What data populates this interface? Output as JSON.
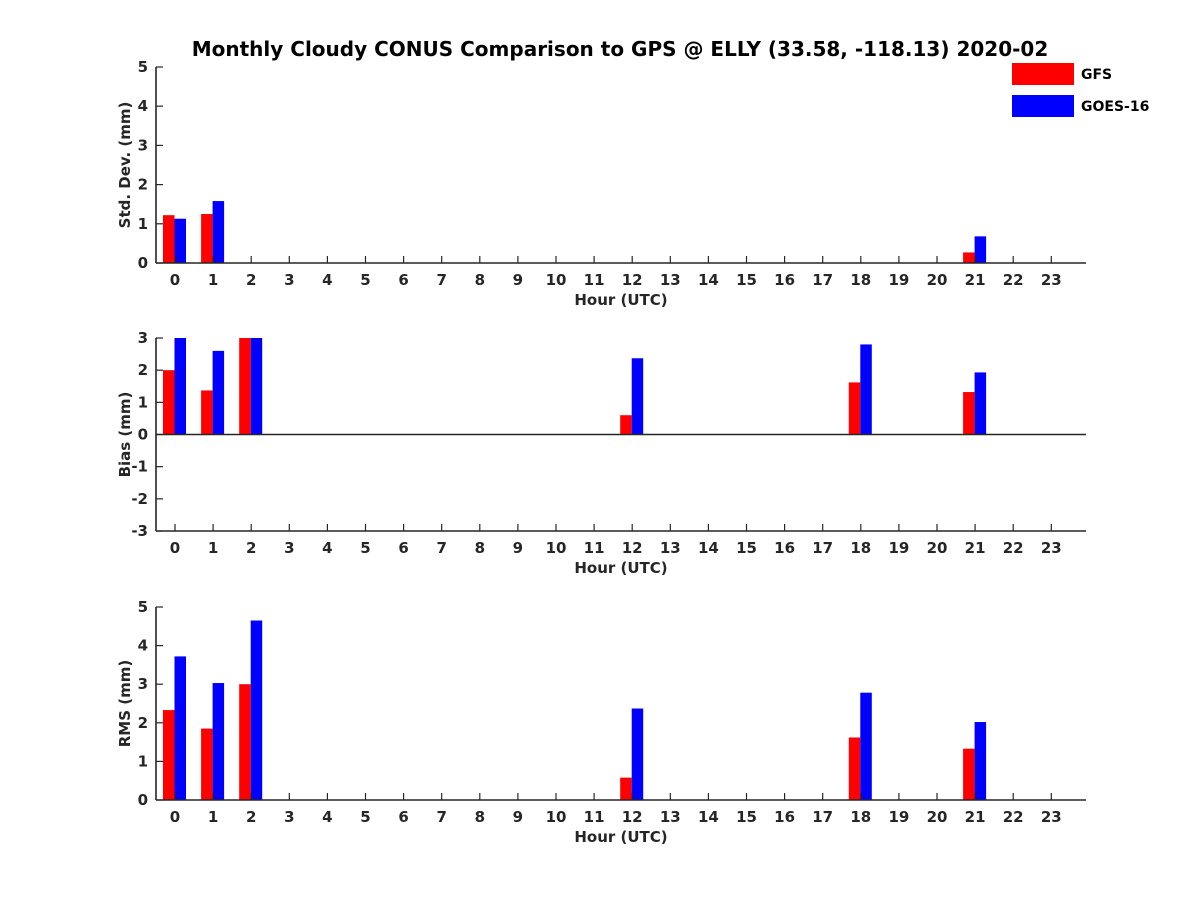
{
  "chart_data": {
    "type": "bar",
    "title": "Monthly Cloudy CONUS Comparison to GPS @ ELLY (33.58, -118.13) 2020-02",
    "categories": [
      "0",
      "1",
      "2",
      "3",
      "4",
      "5",
      "6",
      "7",
      "8",
      "9",
      "10",
      "11",
      "12",
      "13",
      "14",
      "15",
      "16",
      "17",
      "18",
      "19",
      "20",
      "21",
      "22",
      "23"
    ],
    "legend": {
      "placement": "top-right",
      "entries": [
        {
          "name": "GFS",
          "color": "#ff0000"
        },
        {
          "name": "GOES-16",
          "color": "#0000ff"
        }
      ]
    },
    "panels": [
      {
        "id": "std",
        "ylabel": "Std. Dev. (mm)",
        "xlabel": "Hour (UTC)",
        "ylim": [
          0,
          5
        ],
        "yticks": [
          "0",
          "1",
          "2",
          "3",
          "4",
          "5"
        ],
        "series": [
          {
            "name": "GFS",
            "values": [
              1.22,
              1.25,
              0,
              0,
              0,
              0,
              0,
              0,
              0,
              0,
              0,
              0,
              0,
              0,
              0,
              0,
              0,
              0,
              0,
              0,
              0,
              0.27,
              0,
              0
            ]
          },
          {
            "name": "GOES-16",
            "values": [
              1.13,
              1.58,
              0,
              0,
              0,
              0,
              0,
              0,
              0,
              0,
              0,
              0,
              0,
              0,
              0,
              0,
              0,
              0,
              0,
              0,
              0,
              0.68,
              0,
              0
            ]
          }
        ]
      },
      {
        "id": "bias",
        "ylabel": "Bias (mm)",
        "xlabel": "Hour (UTC)",
        "ylim": [
          -3,
          3
        ],
        "yticks": [
          "-3",
          "-2",
          "-1",
          "0",
          "1",
          "2",
          "3"
        ],
        "series": [
          {
            "name": "GFS",
            "values": [
              2.0,
              1.37,
              3.0,
              0,
              0,
              0,
              0,
              0,
              0,
              0,
              0,
              0,
              0.6,
              0,
              0,
              0,
              0,
              0,
              1.62,
              0,
              0,
              1.32,
              0,
              0
            ]
          },
          {
            "name": "GOES-16",
            "values": [
              3.0,
              2.6,
              3.0,
              0,
              0,
              0,
              0,
              0,
              0,
              0,
              0,
              0,
              2.37,
              0,
              0,
              0,
              0,
              0,
              2.8,
              0,
              0,
              1.93,
              0,
              0
            ]
          }
        ]
      },
      {
        "id": "rms",
        "ylabel": "RMS (mm)",
        "xlabel": "Hour (UTC)",
        "ylim": [
          0,
          5
        ],
        "yticks": [
          "0",
          "1",
          "2",
          "3",
          "4",
          "5"
        ],
        "series": [
          {
            "name": "GFS",
            "values": [
              2.33,
              1.85,
              3.0,
              0,
              0,
              0,
              0,
              0,
              0,
              0,
              0,
              0,
              0.58,
              0,
              0,
              0,
              0,
              0,
              1.62,
              0,
              0,
              1.33,
              0,
              0
            ]
          },
          {
            "name": "GOES-16",
            "values": [
              3.72,
              3.03,
              4.65,
              0,
              0,
              0,
              0,
              0,
              0,
              0,
              0,
              0,
              2.37,
              0,
              0,
              0,
              0,
              0,
              2.78,
              0,
              0,
              2.02,
              0,
              0
            ]
          }
        ]
      }
    ]
  }
}
